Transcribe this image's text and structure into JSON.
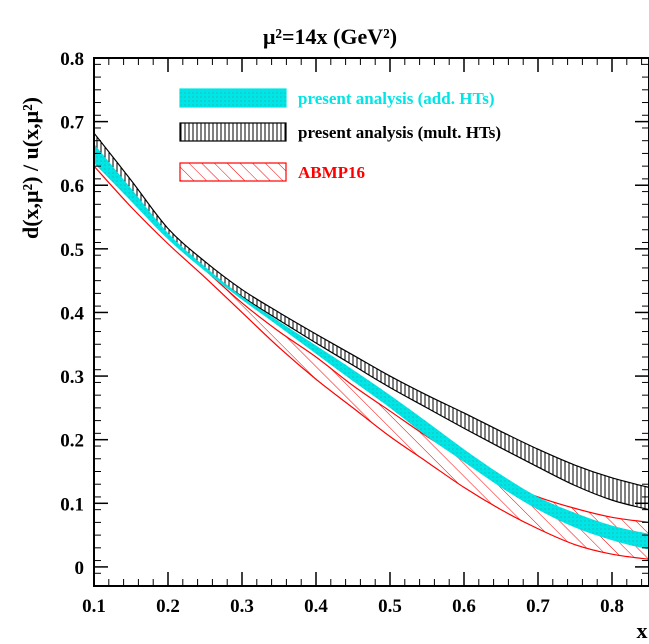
{
  "chart_data": {
    "type": "area",
    "title": "μ²=14x (GeV²)",
    "xlabel": "x",
    "ylabel": "d(x,μ²) / u(x,μ²)",
    "xlim": [
      0.1,
      0.85
    ],
    "ylim": [
      -0.03,
      0.8
    ],
    "xticks": [
      0.1,
      0.2,
      0.3,
      0.4,
      0.5,
      0.6,
      0.7,
      0.8
    ],
    "yticks": [
      0,
      0.1,
      0.2,
      0.3,
      0.4,
      0.5,
      0.6,
      0.7,
      0.8
    ],
    "xtick_labels": [
      "0.1",
      "0.2",
      "0.3",
      "0.4",
      "0.5",
      "0.6",
      "0.7",
      "0.8"
    ],
    "ytick_labels": [
      "0",
      "0.1",
      "0.2",
      "0.3",
      "0.4",
      "0.5",
      "0.6",
      "0.7",
      "0.8"
    ],
    "legend_position": "top-right",
    "series": [
      {
        "name": "present analysis (add. HTs)",
        "color": "#00e5e5",
        "style": "dotted-fill",
        "x": [
          0.1,
          0.15,
          0.2,
          0.25,
          0.3,
          0.35,
          0.4,
          0.45,
          0.5,
          0.55,
          0.6,
          0.65,
          0.7,
          0.75,
          0.8,
          0.85
        ],
        "lower": [
          0.635,
          0.575,
          0.515,
          0.465,
          0.42,
          0.378,
          0.335,
          0.292,
          0.25,
          0.205,
          0.165,
          0.125,
          0.09,
          0.062,
          0.042,
          0.027
        ],
        "upper": [
          0.665,
          0.595,
          0.525,
          0.472,
          0.425,
          0.386,
          0.348,
          0.31,
          0.27,
          0.228,
          0.185,
          0.145,
          0.11,
          0.085,
          0.065,
          0.052
        ]
      },
      {
        "name": "present analysis (mult. HTs)",
        "color": "#000000",
        "style": "vertical-hatch",
        "x": [
          0.1,
          0.15,
          0.2,
          0.25,
          0.3,
          0.35,
          0.4,
          0.45,
          0.5,
          0.55,
          0.6,
          0.65,
          0.7,
          0.75,
          0.8,
          0.85
        ],
        "lower": [
          0.645,
          0.578,
          0.518,
          0.468,
          0.425,
          0.388,
          0.352,
          0.317,
          0.282,
          0.25,
          0.218,
          0.187,
          0.157,
          0.128,
          0.105,
          0.09
        ],
        "upper": [
          0.682,
          0.608,
          0.532,
          0.48,
          0.436,
          0.4,
          0.366,
          0.333,
          0.3,
          0.27,
          0.242,
          0.213,
          0.185,
          0.16,
          0.14,
          0.125
        ]
      },
      {
        "name": "ABMP16",
        "color": "#ff0000",
        "style": "diagonal-hatch",
        "x": [
          0.1,
          0.15,
          0.2,
          0.25,
          0.3,
          0.35,
          0.4,
          0.45,
          0.5,
          0.55,
          0.6,
          0.65,
          0.7,
          0.75,
          0.8,
          0.85
        ],
        "lower": [
          0.63,
          0.566,
          0.508,
          0.455,
          0.4,
          0.345,
          0.295,
          0.25,
          0.205,
          0.165,
          0.125,
          0.09,
          0.06,
          0.035,
          0.02,
          0.012
        ],
        "upper": [
          0.66,
          0.59,
          0.52,
          0.467,
          0.415,
          0.37,
          0.33,
          0.285,
          0.245,
          0.205,
          0.17,
          0.135,
          0.11,
          0.092,
          0.078,
          0.07
        ]
      }
    ]
  }
}
